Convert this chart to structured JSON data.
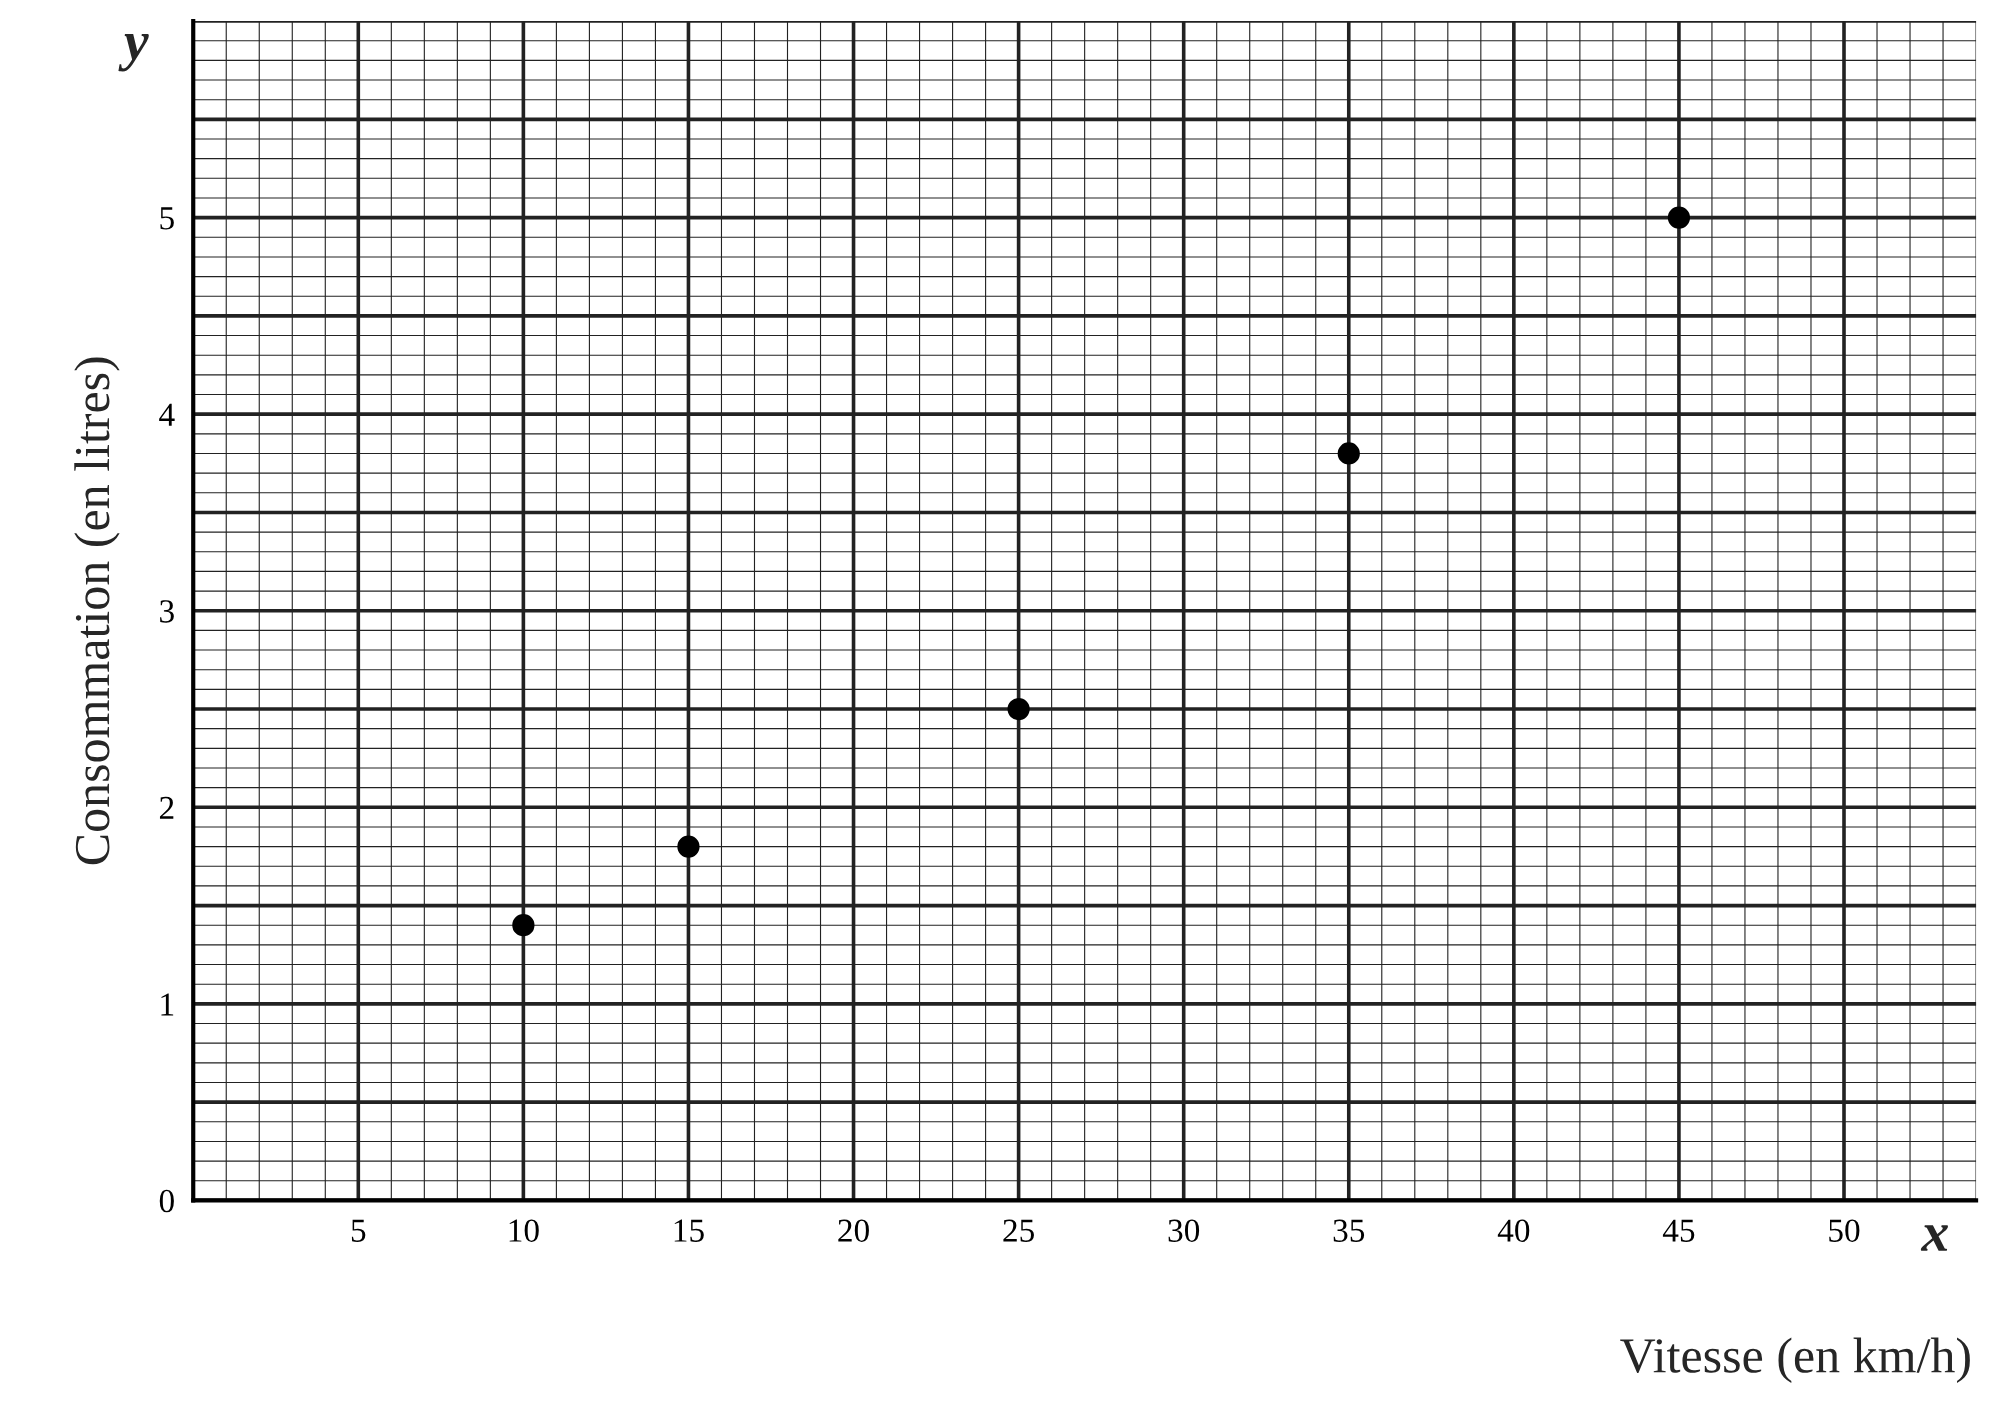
{
  "chart_data": {
    "type": "scatter",
    "xlabel": "Vitesse (en km/h)",
    "ylabel": "Consommation (en litres)",
    "x": [
      10,
      15,
      25,
      35,
      45
    ],
    "values": [
      1.4,
      1.8,
      2.5,
      3.8,
      5.0
    ],
    "color": "#000000",
    "marker": "circle",
    "xlim": [
      0,
      54
    ],
    "ylim": [
      0,
      6
    ],
    "xticks": [
      5,
      10,
      15,
      20,
      25,
      30,
      35,
      40,
      45,
      50
    ],
    "yticks": [
      0,
      1,
      2,
      3,
      4,
      5
    ],
    "grid": true,
    "annotations": [
      "y",
      "x"
    ]
  }
}
